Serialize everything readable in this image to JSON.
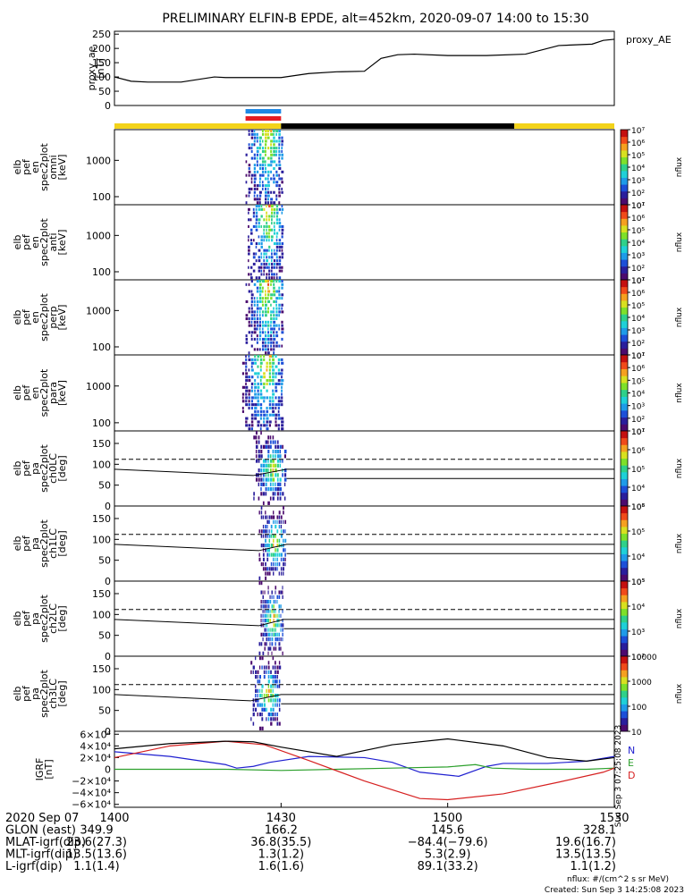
{
  "title": "PRELIMINARY ELFIN-B EPDE, alt=452km, 2020-09-07 14:00 to 15:30",
  "colors": {
    "axis": "#000000",
    "trace_ae": "#000000",
    "day_bar": "#f3d31a",
    "night_bar": "#000000",
    "sci_blue": "#1e88e5",
    "sci_red": "#e51c23",
    "grf_n": "#1f1fd0",
    "grf_e": "#2ca02c",
    "grf_d": "#d62020",
    "grf_mag": "#000000"
  },
  "colormap": [
    "#ffffff",
    "#4b0a6e",
    "#2a1e9c",
    "#1c4fd8",
    "#1e9be8",
    "#1fd0d8",
    "#2fd08a",
    "#7ee02a",
    "#d8e020",
    "#f5a020",
    "#f04a1a",
    "#c41010"
  ],
  "chart_data": [
    {
      "type": "line",
      "name": "proxy_ae",
      "ylabel": "proxy_ae\n[nT]",
      "legend": "proxy_AE",
      "ylim": [
        0,
        260
      ],
      "yticks": [
        "0",
        "50",
        "100",
        "150",
        "200",
        "250"
      ],
      "x_minutes": [
        0,
        3,
        6,
        12,
        18,
        20,
        30,
        35,
        40,
        45,
        48,
        51,
        54,
        60,
        67,
        74,
        80,
        86,
        88,
        90
      ],
      "y": [
        100,
        85,
        82,
        82,
        100,
        98,
        98,
        112,
        118,
        120,
        165,
        178,
        180,
        175,
        175,
        180,
        210,
        215,
        228,
        232
      ]
    },
    {
      "type": "bar",
      "name": "orbit-status-bar",
      "segments": [
        {
          "state": "day",
          "from_min": 0,
          "to_min": 30
        },
        {
          "state": "night",
          "from_min": 30,
          "to_min": 72
        },
        {
          "state": "day",
          "from_min": 72,
          "to_min": 90
        }
      ],
      "science_zone_min": [
        23.6,
        30
      ]
    },
    {
      "type": "heatmap",
      "name": "spectrogram-omni",
      "ylabel": "elb\npef\nen\nspec2plot\nomni\n[keV]",
      "yscale": "log",
      "ylim": [
        60,
        7000
      ],
      "yticks": [
        "100",
        "1000"
      ],
      "zlabel": "nflux",
      "zscale": "log",
      "zlim": [
        10,
        10000000
      ],
      "zticks": [
        "10¹",
        "10²",
        "10³",
        "10⁴",
        "10⁵",
        "10⁶",
        "10⁷"
      ],
      "active_min": [
        23.6,
        30.5
      ]
    },
    {
      "type": "heatmap",
      "name": "spectrogram-anti",
      "ylabel": "elb\npef\nen\nspec2plot\nanti\n[keV]",
      "yscale": "log",
      "ylim": [
        60,
        7000
      ],
      "yticks": [
        "100",
        "1000"
      ],
      "zlabel": "nflux",
      "zscale": "log",
      "zlim": [
        10,
        10000000
      ],
      "zticks": [
        "10¹",
        "10²",
        "10³",
        "10⁴",
        "10⁵",
        "10⁶",
        "10⁷"
      ],
      "active_min": [
        24,
        30.5
      ]
    },
    {
      "type": "heatmap",
      "name": "spectrogram-perp",
      "ylabel": "elb\npef\nen\nspec2plot\nperp\n[keV]",
      "yscale": "log",
      "ylim": [
        60,
        7000
      ],
      "yticks": [
        "100",
        "1000"
      ],
      "zlabel": "nflux",
      "zscale": "log",
      "zlim": [
        10,
        10000000
      ],
      "zticks": [
        "10¹",
        "10²",
        "10³",
        "10⁴",
        "10⁵",
        "10⁶",
        "10⁷"
      ],
      "active_min": [
        23.6,
        30.5
      ]
    },
    {
      "type": "heatmap",
      "name": "spectrogram-para",
      "ylabel": "elb\npef\nen\nspec2plot\npara\n[keV]",
      "yscale": "log",
      "ylim": [
        60,
        7000
      ],
      "yticks": [
        "100",
        "1000"
      ],
      "zlabel": "nflux",
      "zscale": "log",
      "zlim": [
        10,
        10000000
      ],
      "zticks": [
        "10¹",
        "10²",
        "10³",
        "10⁴",
        "10⁵",
        "10⁶",
        "10⁷"
      ],
      "active_min": [
        23,
        30.5
      ]
    },
    {
      "type": "heatmap",
      "name": "pa-ch0LC",
      "ylabel": "elb\npef\npa\nspec2plot\nch0LC\n[deg]",
      "ylim": [
        0,
        180
      ],
      "yticks": [
        "0",
        "50",
        "100",
        "150"
      ],
      "zlabel": "nflux",
      "zticks": [
        "10³",
        "10⁴",
        "10⁵",
        "10⁶",
        "10⁷"
      ],
      "active_min": [
        25,
        31
      ],
      "dashed_deg": 112,
      "lines_deg": [
        [
          88,
          73
        ],
        [
          66,
          66
        ]
      ]
    },
    {
      "type": "heatmap",
      "name": "pa-ch1LC",
      "ylabel": "elb\npef\npa\nspec2plot\nch1LC\n[deg]",
      "ylim": [
        0,
        180
      ],
      "yticks": [
        "0",
        "50",
        "100",
        "150"
      ],
      "zlabel": "nflux",
      "zticks": [
        "10³",
        "10⁴",
        "10⁵",
        "10⁶"
      ],
      "active_min": [
        26,
        31
      ],
      "dashed_deg": 112,
      "lines_deg": [
        [
          88,
          73
        ],
        [
          66,
          66
        ]
      ]
    },
    {
      "type": "heatmap",
      "name": "pa-ch2LC",
      "ylabel": "elb\npef\npa\nspec2plot\nch2LC\n[deg]",
      "ylim": [
        0,
        180
      ],
      "yticks": [
        "0",
        "50",
        "100",
        "150"
      ],
      "zlabel": "nflux",
      "zticks": [
        "10²",
        "10³",
        "10⁴",
        "10⁵"
      ],
      "active_min": [
        26,
        30.5
      ],
      "dashed_deg": 112,
      "lines_deg": [
        [
          88,
          73
        ],
        [
          66,
          66
        ]
      ]
    },
    {
      "type": "heatmap",
      "name": "pa-ch3LC",
      "ylabel": "elb\npef\npa\nspec2plot\nch3LC\n[deg]",
      "ylim": [
        0,
        180
      ],
      "yticks": [
        "0",
        "50",
        "100",
        "150"
      ],
      "zlabel": "nflux",
      "zticks": [
        "10",
        "100",
        "1000",
        "10000"
      ],
      "active_min": [
        24.5,
        30
      ],
      "dashed_deg": 112,
      "lines_deg": [
        [
          88,
          73
        ],
        [
          66,
          66
        ]
      ]
    },
    {
      "type": "line",
      "name": "igrf",
      "ylabel": "IGRF\n[nT]",
      "ylim": [
        -65000,
        65000
      ],
      "yticks": [
        "−6×10⁴",
        "−4×10⁴",
        "−2×10⁴",
        "0",
        "2×10⁴",
        "4×10⁴",
        "6×10⁴"
      ],
      "series": [
        {
          "name": "N",
          "x_minutes": [
            0,
            10,
            20,
            22,
            25,
            28,
            35,
            45,
            50,
            55,
            62,
            67,
            70,
            78,
            85,
            90
          ],
          "y": [
            30000,
            22000,
            8000,
            2000,
            5000,
            12000,
            22000,
            20000,
            12000,
            -5000,
            -12000,
            5000,
            10000,
            10000,
            14000,
            22000
          ]
        },
        {
          "name": "E",
          "x_minutes": [
            0,
            20,
            30,
            40,
            50,
            60,
            65,
            68,
            75,
            85,
            90
          ],
          "y": [
            0,
            0,
            -2000,
            0,
            2000,
            4000,
            8000,
            2000,
            0,
            0,
            2000
          ]
        },
        {
          "name": "D",
          "x_minutes": [
            0,
            10,
            20,
            27,
            35,
            45,
            55,
            60,
            70,
            80,
            88,
            90
          ],
          "y": [
            20000,
            40000,
            48000,
            42000,
            15000,
            -20000,
            -50000,
            -52000,
            -42000,
            -22000,
            -5000,
            2000
          ]
        },
        {
          "name": "mag",
          "x_minutes": [
            0,
            10,
            20,
            25,
            30,
            40,
            50,
            60,
            70,
            78,
            85,
            90
          ],
          "y": [
            35000,
            44000,
            48000,
            47000,
            38000,
            22000,
            42000,
            52000,
            40000,
            20000,
            14000,
            20000
          ]
        }
      ],
      "legend": [
        "N",
        "E",
        "D"
      ]
    }
  ],
  "x_axis": {
    "tick_labels": [
      "1400",
      "1430",
      "1500",
      "1530"
    ],
    "tick_minutes": [
      0,
      30,
      60,
      90
    ],
    "rows": [
      {
        "label": "2020 Sep 07",
        "values": [
          "",
          "",
          "",
          ""
        ]
      },
      {
        "label": "GLON (east)",
        "values": [
          "349.9",
          "166.2",
          "145.6",
          "328.1"
        ]
      },
      {
        "label": "MLAT-igrf(dip)",
        "values": [
          "23.6(27.3)",
          "36.8(35.5)",
          "−84.4(−79.6)",
          "19.6(16.7)"
        ]
      },
      {
        "label": "MLT-igrf(dip)",
        "values": [
          "13.5(13.6)",
          "1.3(1.2)",
          "5.3(2.9)",
          "13.5(13.5)"
        ]
      },
      {
        "label": "L-igrf(dip)",
        "values": [
          "1.1(1.4)",
          "1.6(1.6)",
          "89.1(33.2)",
          "1.1(1.2)"
        ]
      }
    ]
  },
  "footer": {
    "units": "nflux: #/(cm^2 s sr MeV)",
    "created": "Created: Sun Sep  3 14:25:08 2023",
    "side_stamp": "Sun Sep  3 07:25:08 2023"
  }
}
